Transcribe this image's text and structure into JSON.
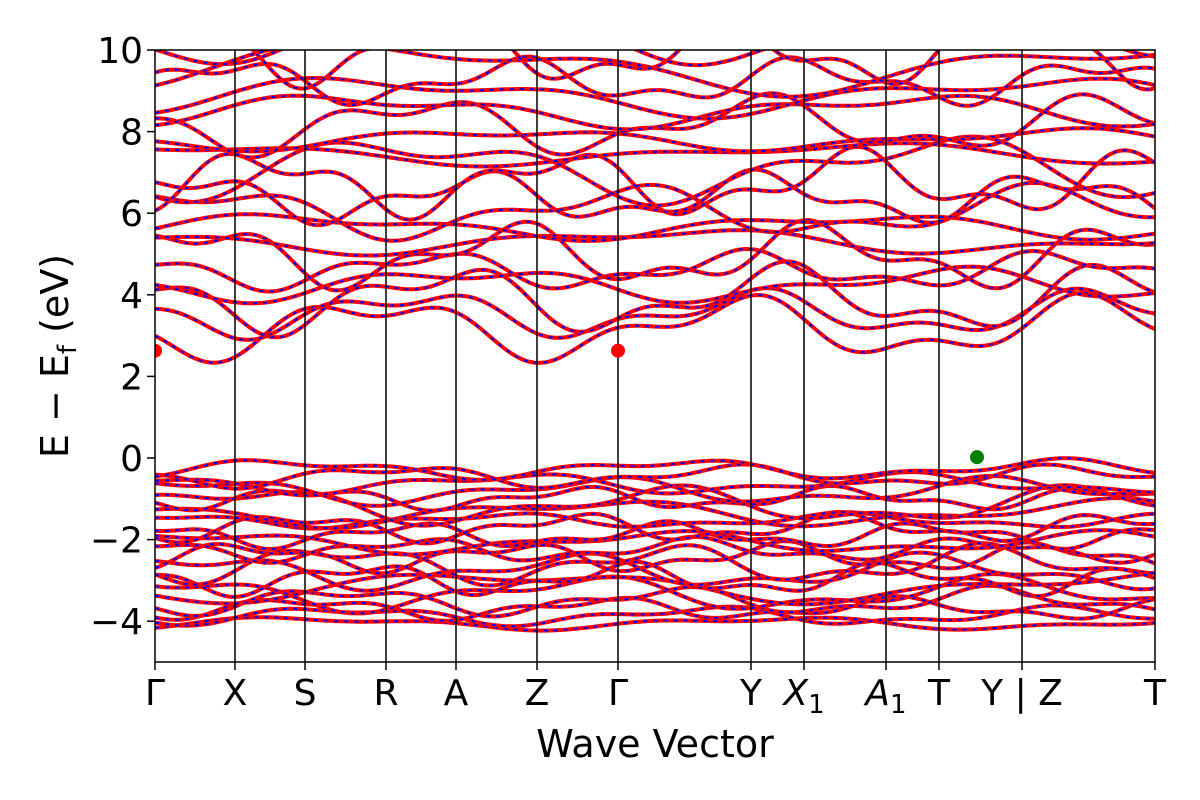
{
  "chart_data": {
    "type": "line",
    "xlabel": "Wave Vector",
    "ylabel_parts": {
      "main": "E − E",
      "sub": "f",
      "unit": "(eV)"
    },
    "ylim": [
      -5,
      10
    ],
    "yticks": [
      -4,
      -2,
      0,
      2,
      4,
      6,
      8,
      10
    ],
    "ytick_labels": [
      "−4",
      "−2",
      "0",
      "2",
      "4",
      "6",
      "8",
      "10"
    ],
    "kpath": [
      {
        "label": "Γ",
        "k": 0.0
      },
      {
        "label": "X",
        "k": 0.8
      },
      {
        "label": "S",
        "k": 1.5
      },
      {
        "label": "R",
        "k": 2.31
      },
      {
        "label": "A",
        "k": 3.01
      },
      {
        "label": "Z",
        "k": 3.82
      },
      {
        "label": "Γ",
        "k": 4.63
      },
      {
        "label": "Y",
        "k": 5.96
      },
      {
        "label": "X",
        "sub": "1",
        "k": 6.49
      },
      {
        "label": "A",
        "sub": "1",
        "k": 7.31
      },
      {
        "label": "T",
        "k": 7.84
      },
      {
        "label": "Y | Z",
        "k": 8.67
      },
      {
        "label": "T",
        "k": 10.0
      }
    ],
    "series": [
      {
        "line_color": "#ff0000",
        "dash_color": "#0000ff"
      }
    ],
    "markers": [
      {
        "k": 0.0,
        "e": 2.63,
        "color": "#ff0000"
      },
      {
        "k": 4.63,
        "e": 2.63,
        "color": "#ff0000"
      },
      {
        "k": 8.22,
        "e": 0.02,
        "color": "#008000"
      }
    ],
    "valence_band_count": 22,
    "conduction_band_count": 22,
    "valence_range": [
      -4.3,
      -0.02
    ],
    "conduction_range": [
      2.63,
      10.6
    ]
  }
}
